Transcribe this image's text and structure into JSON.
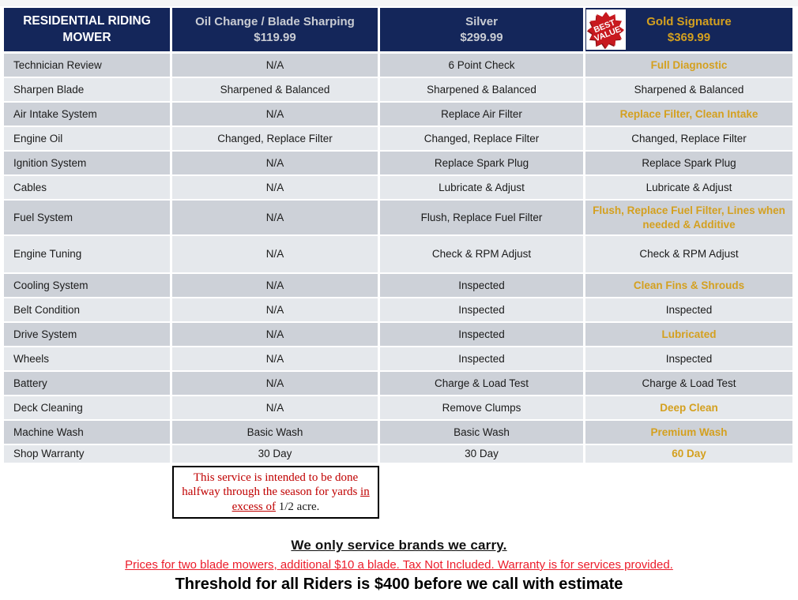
{
  "table": {
    "corner_header": "RESIDENTIAL RIDING MOWER",
    "plans": [
      {
        "name": "Oil Change / Blade Sharping",
        "price": "$119.99"
      },
      {
        "name": "Silver",
        "price": "$299.99"
      },
      {
        "name": "Gold Signature",
        "price": "$369.99"
      }
    ],
    "rows": [
      {
        "label": "Technician Review",
        "oil": "N/A",
        "silver": "6 Point Check",
        "gold": "Full Diagnostic",
        "gold_highlight": true
      },
      {
        "label": "Sharpen Blade",
        "oil": "Sharpened & Balanced",
        "silver": "Sharpened & Balanced",
        "gold": "Sharpened & Balanced",
        "gold_highlight": false
      },
      {
        "label": "Air Intake System",
        "oil": "N/A",
        "silver": "Replace Air Filter",
        "gold": "Replace Filter, Clean Intake",
        "gold_highlight": true
      },
      {
        "label": "Engine Oil",
        "oil": "Changed, Replace Filter",
        "silver": "Changed, Replace Filter",
        "gold": "Changed, Replace Filter",
        "gold_highlight": false
      },
      {
        "label": "Ignition System",
        "oil": "N/A",
        "silver": "Replace Spark Plug",
        "gold": "Replace Spark Plug",
        "gold_highlight": false
      },
      {
        "label": "Cables",
        "oil": "N/A",
        "silver": "Lubricate & Adjust",
        "gold": "Lubricate & Adjust",
        "gold_highlight": false
      },
      {
        "label": "Fuel System",
        "oil": "N/A",
        "silver": "Flush, Replace Fuel Filter",
        "gold": "Flush, Replace Fuel Filter, Lines when needed & Additive",
        "gold_highlight": true
      },
      {
        "label": "Engine Tuning",
        "oil": "N/A",
        "silver": "Check & RPM Adjust",
        "gold": "Check & RPM Adjust",
        "gold_highlight": false
      },
      {
        "label": "Cooling System",
        "oil": "N/A",
        "silver": "Inspected",
        "gold": "Clean Fins & Shrouds",
        "gold_highlight": true
      },
      {
        "label": "Belt Condition",
        "oil": "N/A",
        "silver": "Inspected",
        "gold": "Inspected",
        "gold_highlight": false
      },
      {
        "label": "Drive System",
        "oil": "N/A",
        "silver": "Inspected",
        "gold": "Lubricated",
        "gold_highlight": true
      },
      {
        "label": "Wheels",
        "oil": "N/A",
        "silver": "Inspected",
        "gold": "Inspected",
        "gold_highlight": false
      },
      {
        "label": "Battery",
        "oil": "N/A",
        "silver": "Charge & Load Test",
        "gold": "Charge & Load Test",
        "gold_highlight": false
      },
      {
        "label": "Deck Cleaning",
        "oil": "N/A",
        "silver": "Remove Clumps",
        "gold": "Deep Clean",
        "gold_highlight": true
      },
      {
        "label": "Machine Wash",
        "oil": "Basic Wash",
        "silver": "Basic Wash",
        "gold": "Premium Wash",
        "gold_highlight": true
      },
      {
        "label": "Shop Warranty",
        "oil": "30 Day",
        "silver": "30 Day",
        "gold": "60 Day",
        "gold_highlight": true
      }
    ]
  },
  "badge": {
    "line1": "BEST",
    "line2": "VALUE"
  },
  "note_box": {
    "segments": [
      {
        "text": "This service is intended to be done halfway through the season for yards ",
        "style": "red"
      },
      {
        "text": "in excess of",
        "style": "red-underline"
      },
      {
        "text": " ",
        "style": "plain"
      },
      {
        "text": "1/2 acre.",
        "style": "plain"
      }
    ]
  },
  "footer": {
    "line1": "We only service brands we carry.",
    "line2": "Prices for two blade mowers, additional $10 a blade. Tax Not Included. Warranty is for services provided.",
    "line3": "Threshold for all Riders is $400 before we call with estimate"
  },
  "colors": {
    "header_navy": "#14265a",
    "gold_accent": "#d4a01f",
    "silver_header_text": "#c9ccd3",
    "row_dark": "#cdd1d8",
    "row_light": "#e5e8ec",
    "badge_red": "#c8191f",
    "note_red": "#c00000",
    "footer_red": "#ec1c2a"
  }
}
